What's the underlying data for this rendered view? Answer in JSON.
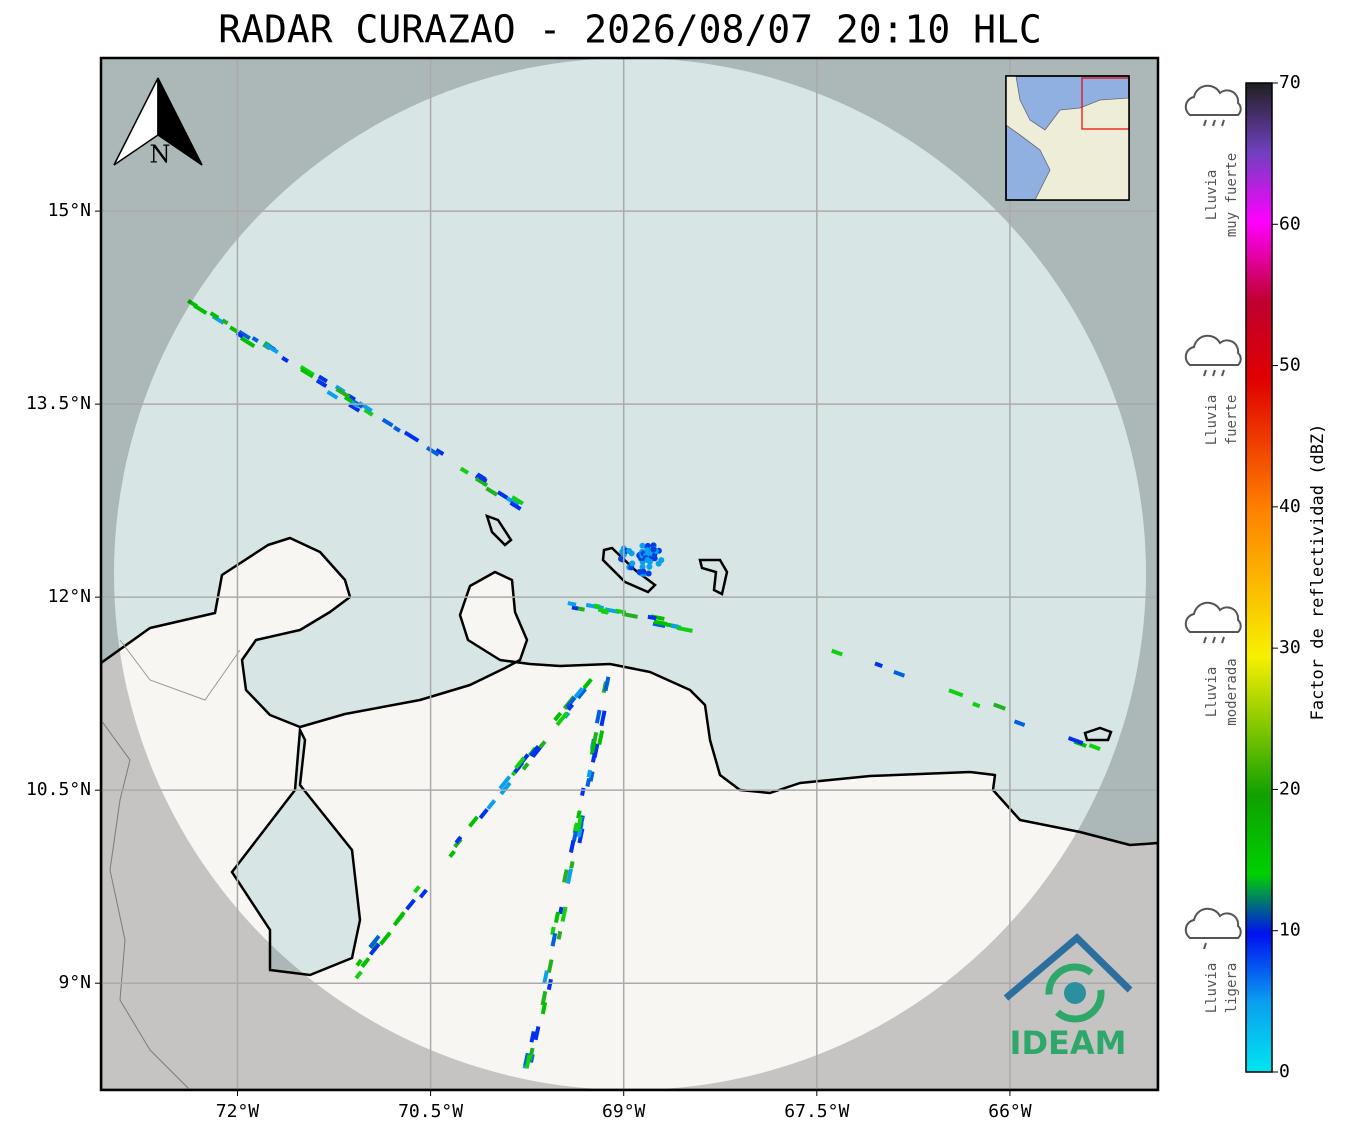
{
  "title": "RADAR CURAZAO - 2026/08/07 20:10 HLC",
  "map": {
    "xlim": [
      -73.06,
      -64.85
    ],
    "ylim": [
      8.17,
      16.19
    ],
    "xticks": [
      {
        "value": -72,
        "label": "72°W"
      },
      {
        "value": -70.5,
        "label": "70.5°W"
      },
      {
        "value": -69,
        "label": "69°W"
      },
      {
        "value": -67.5,
        "label": "67.5°W"
      },
      {
        "value": -66,
        "label": "66°W"
      }
    ],
    "yticks": [
      {
        "value": 9,
        "label": "9°N"
      },
      {
        "value": 10.5,
        "label": "10.5°N"
      },
      {
        "value": 12,
        "label": "12°N"
      },
      {
        "value": 13.5,
        "label": "13.5°N"
      },
      {
        "value": 15,
        "label": "15°N"
      }
    ],
    "grid": true,
    "north_label": "N"
  },
  "colorbar": {
    "label": "Factor de reflectividad (dBZ)",
    "lim": [
      0,
      70
    ],
    "ticks": [
      0,
      10,
      20,
      30,
      40,
      50,
      60,
      70
    ]
  },
  "legend": [
    {
      "lines": [
        "Lluvia",
        "muy fuerte"
      ]
    },
    {
      "lines": [
        "Lluvia",
        "fuerte"
      ]
    },
    {
      "lines": [
        "Lluvia",
        "moderada"
      ]
    },
    {
      "lines": [
        "Lluvia",
        "ligera"
      ]
    }
  ],
  "logo": "IDEAM"
}
